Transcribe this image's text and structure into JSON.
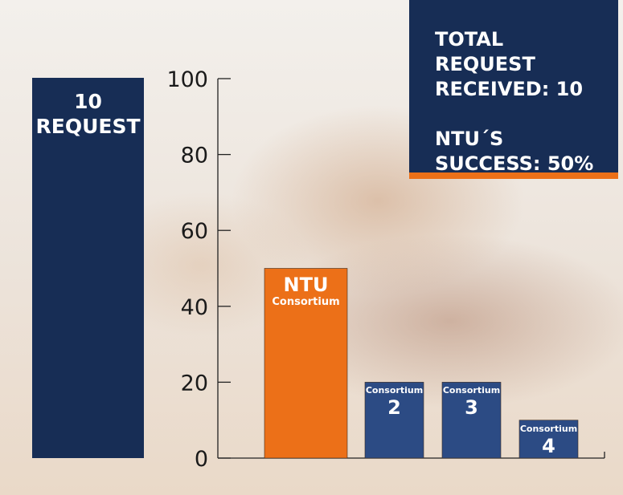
{
  "side_panel": {
    "value": "10",
    "label": "REQUEST"
  },
  "info_box": {
    "line1": "TOTAL REQUEST RECEIVED: 10",
    "line2": "NTU´S SUCCESS: 50%"
  },
  "colors": {
    "navy": "#172d55",
    "bar_blue": "#2c4b84",
    "orange": "#ec7018"
  },
  "chart_data": {
    "type": "bar",
    "categories": [
      "NTU Consortium",
      "Consortium 2",
      "Consortium 3",
      "Consortium 4"
    ],
    "bar_labels": [
      {
        "top": "NTU",
        "bottom": "Consortium"
      },
      {
        "top": "Consortium",
        "bottom": "2"
      },
      {
        "top": "Consortium",
        "bottom": "3"
      },
      {
        "top": "Consortium",
        "bottom": "4"
      }
    ],
    "values": [
      50,
      20,
      20,
      10
    ],
    "bar_colors": [
      "#ec7018",
      "#2c4b84",
      "#2c4b84",
      "#2c4b84"
    ],
    "yticks": [
      "0",
      "20",
      "40",
      "60",
      "80",
      "100"
    ],
    "ylim": [
      0,
      100
    ],
    "title": "",
    "xlabel": "",
    "ylabel": "",
    "grid": false
  }
}
